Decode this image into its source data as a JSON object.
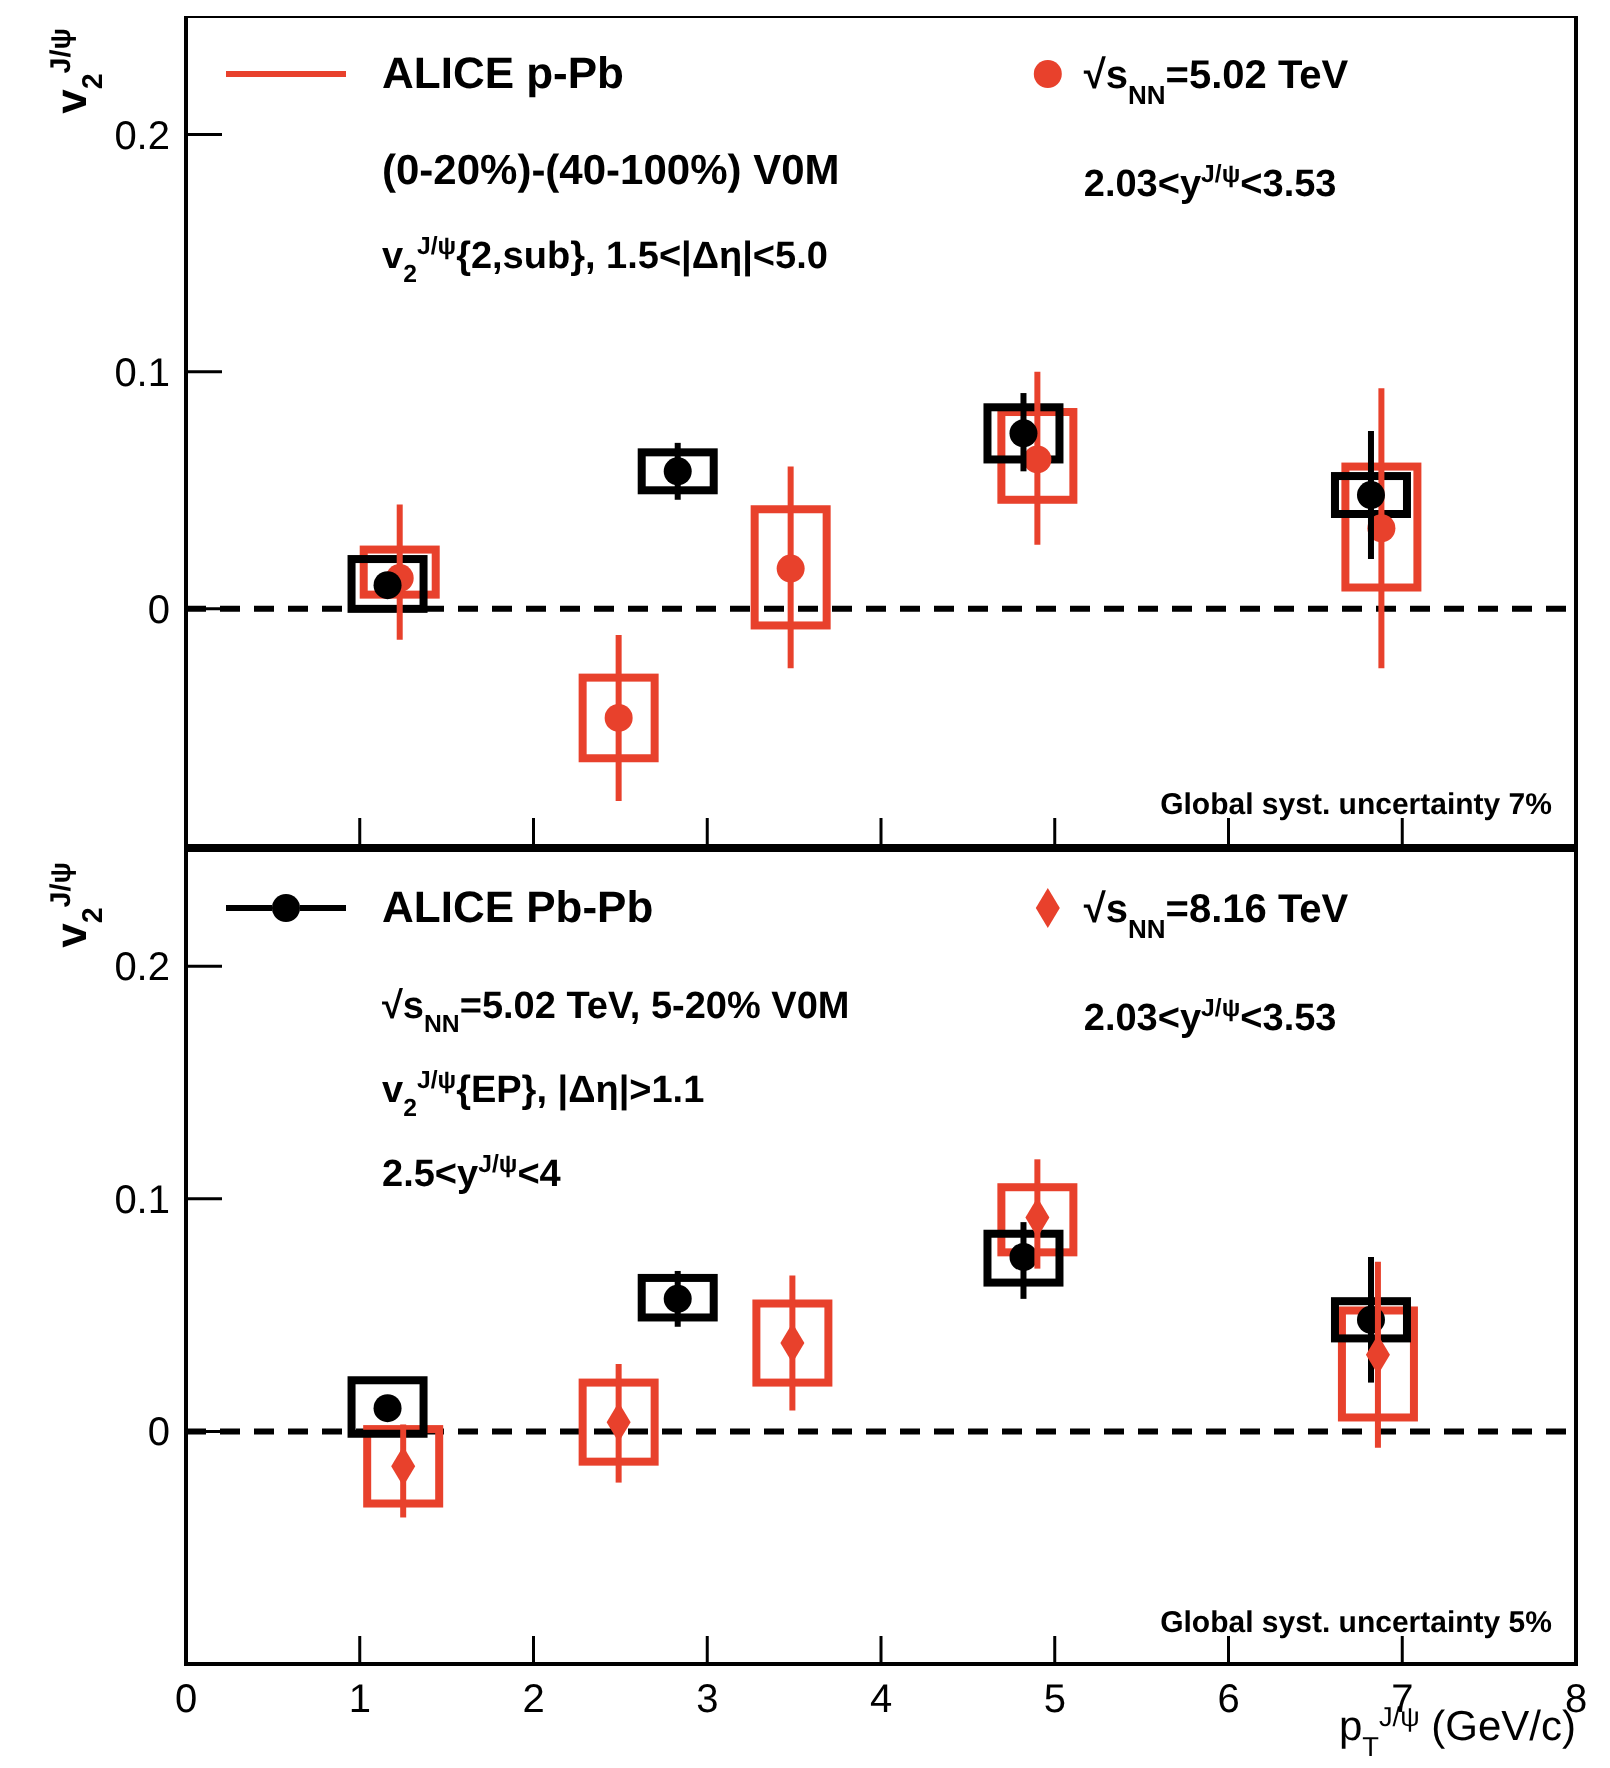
{
  "chart_data": [
    {
      "type": "scatter",
      "ylabel": "v$_{2}$$^{J/ψ}$",
      "legend_title": "ALICE p-Pb",
      "legend": "top",
      "tick_labels": "y",
      "xlim": [
        0,
        8
      ],
      "xticks": [
        0,
        1,
        2,
        3,
        4,
        5,
        6,
        7,
        8
      ],
      "ylim": [
        -0.1,
        0.25
      ],
      "yticks": [
        0,
        0.1,
        0.2
      ],
      "annotations": [
        "(0-20%)-(40-100%) V0M",
        "v$_{2}$$^{J/ψ}${2,sub}, 1.5<|Δη|<5.0",
        "2.03<y$^{J/ψ}$<3.53",
        "Global syst. uncertainty 7%"
      ],
      "ref_lines": [
        {
          "axis": "y",
          "value": 0,
          "color": "#000000",
          "line_style": "dashed"
        }
      ],
      "series": [
        {
          "type": "bar",
          "color": "#e8412c",
          "x": [
            1.23,
            2.49,
            3.48,
            4.9,
            6.88
          ],
          "base": [
            0.006,
            -0.063,
            -0.007,
            0.046,
            0.009
          ],
          "values": [
            0.019,
            0.034,
            0.049,
            0.037,
            0.051
          ]
        },
        {
          "type": "bar",
          "color": "#000000",
          "x": [
            1.16,
            2.83,
            4.82,
            6.82
          ],
          "base": [
            0,
            0.05,
            0.063,
            0.04
          ],
          "values": [
            0.021,
            0.016,
            0.022,
            0.016
          ]
        },
        {
          "name": "√s$_{NN}$=5.02 TeV",
          "color": "#e8412c",
          "marker": "circle",
          "x": [
            1.23,
            2.49,
            3.48,
            4.9,
            6.88
          ],
          "values": [
            0.013,
            -0.046,
            0.017,
            0.063,
            0.034
          ],
          "errors": [
            [
              -0.013,
              0.044
            ],
            0.035,
            [
              -0.025,
              0.06
            ],
            [
              0.027,
              0.1
            ],
            0.059
          ]
        },
        {
          "color": "#000000",
          "marker": "circle",
          "x": [
            1.16,
            2.83,
            4.82,
            6.82
          ],
          "values": [
            0.01,
            0.058,
            0.074,
            0.048
          ],
          "errors": [
            null,
            0.012,
            [
              0.058,
              0.091
            ],
            0.027
          ]
        }
      ]
    },
    {
      "type": "scatter",
      "ylabel": "v$_{2}$$^{J/ψ}$",
      "xlabel": "p$_{T}$$^{J/ψ}$ (GeV/c)",
      "legend": "top",
      "xlim": [
        0,
        8
      ],
      "xticks": [
        0,
        1,
        2,
        3,
        4,
        5,
        6,
        7,
        8
      ],
      "ylim": [
        -0.1,
        0.25
      ],
      "yticks": [
        0,
        0.1,
        0.2
      ],
      "annotations": [
        "√s$_{NN}$=5.02 TeV, 5-20% V0M",
        "v$_{2}$$^{J/ψ}${EP}, |Δη|>1.1",
        "2.5<y$^{J/ψ}$<4",
        "2.03<y$^{J/ψ}$<3.53",
        "Global syst. uncertainty 5%"
      ],
      "ref_lines": [
        {
          "axis": "y",
          "value": 0,
          "color": "#000000",
          "line_style": "dashed"
        }
      ],
      "series": [
        {
          "type": "bar",
          "color": "#e8412c",
          "x": [
            1.25,
            2.49,
            3.49,
            4.9,
            6.86
          ],
          "base": [
            -0.031,
            -0.013,
            0.021,
            0.077,
            0.006
          ],
          "values": [
            0.032,
            0.034,
            0.034,
            0.028,
            0.046
          ]
        },
        {
          "type": "bar",
          "color": "#000000",
          "x": [
            1.16,
            2.83,
            4.82,
            6.82
          ],
          "base": [
            -0.001,
            0.049,
            0.064,
            0.04
          ],
          "values": [
            0.023,
            0.017,
            0.021,
            0.016
          ]
        },
        {
          "name": "ALICE Pb-Pb",
          "color": "#000000",
          "marker": "circle",
          "x": [
            1.16,
            2.83,
            4.82,
            6.82
          ],
          "values": [
            0.01,
            0.057,
            0.075,
            0.048
          ],
          "errors": [
            null,
            0.012,
            [
              0.057,
              0.09
            ],
            0.027
          ]
        },
        {
          "name": "√s$_{NN}$=8.16 TeV",
          "color": "#e8412c",
          "marker": "diamond",
          "x": [
            1.25,
            2.49,
            3.49,
            4.9,
            6.86
          ],
          "values": [
            -0.015,
            0.004,
            0.038,
            0.092,
            0.033
          ],
          "errors": [
            [
              -0.037,
              0.003
            ],
            [
              -0.022,
              0.029
            ],
            0.029,
            [
              0.07,
              0.117
            ],
            0.04
          ]
        }
      ]
    }
  ]
}
